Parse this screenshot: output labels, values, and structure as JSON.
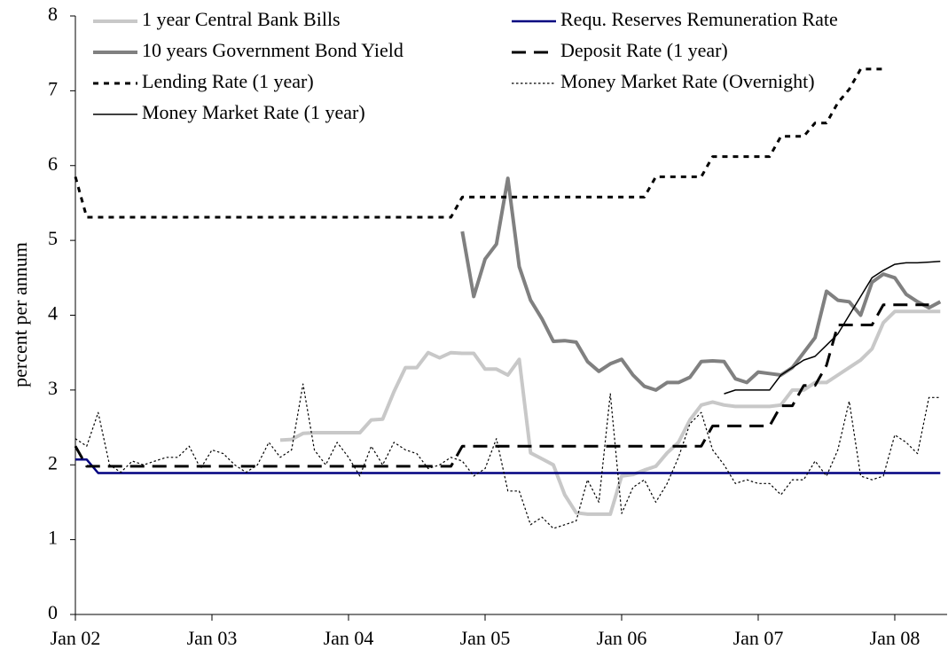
{
  "chart_data": {
    "type": "line",
    "ylabel": "percent per annum",
    "ylim": [
      0,
      8
    ],
    "yticks": [
      0,
      1,
      2,
      3,
      4,
      5,
      6,
      7,
      8
    ],
    "categories": [
      "Jan 02",
      null,
      null,
      null,
      null,
      null,
      null,
      null,
      null,
      null,
      null,
      null,
      "Jan 03",
      null,
      null,
      null,
      null,
      null,
      null,
      null,
      null,
      null,
      null,
      null,
      "Jan 04",
      null,
      null,
      null,
      null,
      null,
      null,
      null,
      null,
      null,
      null,
      null,
      "Jan 05",
      null,
      null,
      null,
      null,
      null,
      null,
      null,
      null,
      null,
      null,
      null,
      "Jan 06",
      null,
      null,
      null,
      null,
      null,
      null,
      null,
      null,
      null,
      null,
      null,
      "Jan 07",
      null,
      null,
      null,
      null,
      null,
      null,
      null,
      null,
      null,
      null,
      null,
      "Jan 08",
      null,
      null,
      null,
      null
    ],
    "series": [
      {
        "name": "1 year Central Bank Bills",
        "color": "#c8c8c8",
        "style": "thick",
        "values": [
          null,
          null,
          null,
          null,
          null,
          null,
          null,
          null,
          null,
          null,
          null,
          null,
          null,
          null,
          null,
          null,
          null,
          null,
          2.33,
          2.34,
          2.42,
          2.43,
          2.43,
          2.43,
          2.43,
          2.43,
          2.6,
          2.61,
          2.98,
          3.3,
          3.3,
          3.5,
          3.43,
          3.5,
          3.49,
          3.49,
          3.28,
          3.28,
          3.2,
          3.41,
          2.16,
          2.08,
          2.0,
          1.6,
          1.36,
          1.34,
          1.34,
          1.34,
          1.85,
          1.87,
          1.93,
          1.98,
          2.16,
          2.3,
          2.6,
          2.8,
          2.84,
          2.8,
          2.78,
          2.78,
          2.78,
          2.78,
          2.8,
          3.0,
          3.0,
          3.1,
          3.1,
          3.2,
          3.3,
          3.4,
          3.55,
          3.9,
          4.05,
          4.05,
          4.05,
          4.05,
          4.05
        ]
      },
      {
        "name": "Requ. Reserves Remuneration Rate",
        "color": "#000080",
        "style": "solid",
        "values": [
          2.07,
          2.07,
          1.89,
          1.89,
          1.89,
          1.89,
          1.89,
          1.89,
          1.89,
          1.89,
          1.89,
          1.89,
          1.89,
          1.89,
          1.89,
          1.89,
          1.89,
          1.89,
          1.89,
          1.89,
          1.89,
          1.89,
          1.89,
          1.89,
          1.89,
          1.89,
          1.89,
          1.89,
          1.89,
          1.89,
          1.89,
          1.89,
          1.89,
          1.89,
          1.89,
          1.89,
          1.89,
          1.89,
          1.89,
          1.89,
          1.89,
          1.89,
          1.89,
          1.89,
          1.89,
          1.89,
          1.89,
          1.89,
          1.89,
          1.89,
          1.89,
          1.89,
          1.89,
          1.89,
          1.89,
          1.89,
          1.89,
          1.89,
          1.89,
          1.89,
          1.89,
          1.89,
          1.89,
          1.89,
          1.89,
          1.89,
          1.89,
          1.89,
          1.89,
          1.89,
          1.89,
          1.89,
          1.89,
          1.89,
          1.89,
          1.89,
          1.89
        ]
      },
      {
        "name": "10 years Government Bond Yield",
        "color": "#808080",
        "style": "thick",
        "values": [
          null,
          null,
          null,
          null,
          null,
          null,
          null,
          null,
          null,
          null,
          null,
          null,
          null,
          null,
          null,
          null,
          null,
          null,
          null,
          null,
          null,
          null,
          null,
          null,
          null,
          null,
          null,
          null,
          null,
          null,
          null,
          null,
          null,
          null,
          5.12,
          4.25,
          4.75,
          4.95,
          5.83,
          4.65,
          4.2,
          3.95,
          3.65,
          3.66,
          3.64,
          3.38,
          3.25,
          3.35,
          3.41,
          3.2,
          3.05,
          3.0,
          3.1,
          3.1,
          3.17,
          3.38,
          3.39,
          3.38,
          3.15,
          3.1,
          3.24,
          3.22,
          3.2,
          3.3,
          3.5,
          3.7,
          4.32,
          4.2,
          4.18,
          4.0,
          4.44,
          4.55,
          4.5,
          4.28,
          4.18,
          4.1,
          4.18
        ]
      },
      {
        "name": "Deposit Rate (1 year)",
        "color": "#000000",
        "style": "dashed",
        "values": [
          2.25,
          1.98,
          1.98,
          1.98,
          1.98,
          1.98,
          1.98,
          1.98,
          1.98,
          1.98,
          1.98,
          1.98,
          1.98,
          1.98,
          1.98,
          1.98,
          1.98,
          1.98,
          1.98,
          1.98,
          1.98,
          1.98,
          1.98,
          1.98,
          1.98,
          1.98,
          1.98,
          1.98,
          1.98,
          1.98,
          1.98,
          1.98,
          1.98,
          1.98,
          2.25,
          2.25,
          2.25,
          2.25,
          2.25,
          2.25,
          2.25,
          2.25,
          2.25,
          2.25,
          2.25,
          2.25,
          2.25,
          2.25,
          2.25,
          2.25,
          2.25,
          2.25,
          2.25,
          2.25,
          2.25,
          2.25,
          2.52,
          2.52,
          2.52,
          2.52,
          2.52,
          2.52,
          2.79,
          2.79,
          3.06,
          3.06,
          3.33,
          3.87,
          3.87,
          3.87,
          3.87,
          4.14,
          4.14,
          4.14,
          4.14,
          4.14,
          null
        ]
      },
      {
        "name": "Lending Rate (1 year)",
        "color": "#000000",
        "style": "dotted",
        "values": [
          5.85,
          5.31,
          5.31,
          5.31,
          5.31,
          5.31,
          5.31,
          5.31,
          5.31,
          5.31,
          5.31,
          5.31,
          5.31,
          5.31,
          5.31,
          5.31,
          5.31,
          5.31,
          5.31,
          5.31,
          5.31,
          5.31,
          5.31,
          5.31,
          5.31,
          5.31,
          5.31,
          5.31,
          5.31,
          5.31,
          5.31,
          5.31,
          5.31,
          5.31,
          5.58,
          5.58,
          5.58,
          5.58,
          5.58,
          5.58,
          5.58,
          5.58,
          5.58,
          5.58,
          5.58,
          5.58,
          5.58,
          5.58,
          5.58,
          5.58,
          5.58,
          5.85,
          5.85,
          5.85,
          5.85,
          5.85,
          6.12,
          6.12,
          6.12,
          6.12,
          6.12,
          6.12,
          6.39,
          6.39,
          6.39,
          6.57,
          6.57,
          6.84,
          7.02,
          7.29,
          7.29,
          7.29,
          null,
          null,
          null,
          null,
          null
        ]
      },
      {
        "name": "Money Market Rate (Overnight)",
        "color": "#000000",
        "style": "fine",
        "values": [
          2.35,
          2.25,
          2.7,
          2.0,
          1.9,
          2.05,
          2.0,
          2.05,
          2.1,
          2.1,
          2.25,
          1.95,
          2.2,
          2.15,
          2.0,
          1.9,
          2.0,
          2.3,
          2.1,
          2.2,
          3.08,
          2.2,
          2.0,
          2.3,
          2.1,
          1.85,
          2.25,
          2.0,
          2.3,
          2.2,
          2.15,
          1.95,
          2.0,
          2.1,
          2.05,
          1.85,
          1.95,
          2.35,
          1.65,
          1.65,
          1.2,
          1.3,
          1.15,
          1.2,
          1.25,
          1.8,
          1.5,
          2.95,
          1.35,
          1.7,
          1.8,
          1.5,
          1.75,
          2.1,
          2.55,
          2.7,
          2.2,
          2.0,
          1.75,
          1.8,
          1.75,
          1.75,
          1.6,
          1.8,
          1.8,
          2.05,
          1.85,
          2.2,
          2.85,
          1.85,
          1.8,
          1.85,
          2.4,
          2.3,
          2.15,
          2.9,
          2.9
        ]
      },
      {
        "name": "Money Market Rate (1 year)",
        "color": "#000000",
        "style": "solid",
        "values": [
          null,
          null,
          null,
          null,
          null,
          null,
          null,
          null,
          null,
          null,
          null,
          null,
          null,
          null,
          null,
          null,
          null,
          null,
          null,
          null,
          null,
          null,
          null,
          null,
          null,
          null,
          null,
          null,
          null,
          null,
          null,
          null,
          null,
          null,
          null,
          null,
          null,
          null,
          null,
          null,
          null,
          null,
          null,
          null,
          null,
          null,
          null,
          null,
          null,
          null,
          null,
          null,
          null,
          null,
          null,
          null,
          null,
          2.95,
          3.0,
          3.0,
          3.0,
          3.0,
          3.2,
          3.3,
          3.4,
          3.45,
          3.6,
          3.75,
          4.0,
          4.25,
          4.5,
          4.6,
          4.68,
          4.7,
          4.7,
          4.71,
          4.72
        ]
      }
    ]
  }
}
